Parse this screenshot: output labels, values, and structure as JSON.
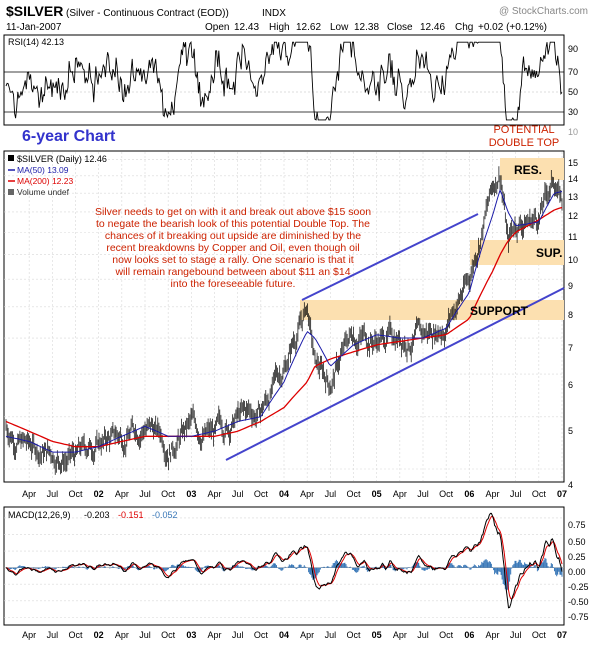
{
  "header": {
    "symbol": "$SILVER",
    "name": "(Silver - Continuous Contract (EOD))",
    "exchange": "INDX",
    "watermark": "@ StockCharts.com",
    "date": "11-Jan-2007",
    "open_label": "Open",
    "open": "12.43",
    "high_label": "High",
    "high": "12.62",
    "low_label": "Low",
    "low": "12.38",
    "close_label": "Close",
    "close": "12.46",
    "chg_label": "Chg",
    "chg": "+0.02 (+0.12%)"
  },
  "rsi_panel": {
    "label": "RSI(14) 42.13",
    "ticks": [
      "90",
      "70",
      "50",
      "30",
      "10"
    ]
  },
  "price_panel": {
    "legend": {
      "price": "$SILVER (Daily) 12.46",
      "ma50": "MA(50) 13.09",
      "ma200": "MA(200) 12.23",
      "volume": "Volume undef"
    },
    "y_ticks": [
      "15",
      "14",
      "13",
      "12",
      "11",
      "10",
      "9",
      "8",
      "7",
      "6",
      "5",
      "4"
    ],
    "annotations": {
      "six_year": "6-year Chart",
      "double_top_1": "POTENTIAL",
      "double_top_2": "DOUBLE TOP",
      "res": "RES.",
      "sup": "SUP.",
      "support": "SUPPORT",
      "commentary": [
        "Silver needs to get on with it and break out above $15 soon",
        "to negate the bearish look of this potential Double Top. The",
        "chances of it breaking out upside are diminished by the",
        "recent breakdowns by Copper and Oil, even though oil",
        "now looks set to stage a rally. One scenario is that it",
        "will remain rangebound between about $11 an $14",
        "into the foreseeable future."
      ]
    }
  },
  "x_axis_labels": [
    "Apr",
    "Jul",
    "Oct",
    "02",
    "Apr",
    "Jul",
    "Oct",
    "03",
    "Apr",
    "Jul",
    "Oct",
    "04",
    "Apr",
    "Jul",
    "Oct",
    "05",
    "Apr",
    "Jul",
    "Oct",
    "06",
    "Apr",
    "Jul",
    "Oct",
    "07"
  ],
  "macd_panel": {
    "label_prefix": "MACD(12,26,9)",
    "value1": "-0.203",
    "value2": "-0.151",
    "value3": "-0.052",
    "ticks": [
      "0.75",
      "0.50",
      "0.25",
      "0.00",
      "-0.25",
      "-0.50",
      "-0.75"
    ]
  },
  "colors": {
    "price_bars": "#000000",
    "ma50": "#1a1aa8",
    "ma200": "#dd0000",
    "trendline": "#4444cc",
    "zone": "#fce0b0",
    "annotation_red": "#cc2200",
    "annotation_blue": "#3333cc",
    "macd_hist": "#3a78b8"
  },
  "chart_data": {
    "type": "line",
    "x": [
      "2001-01",
      "2001-04",
      "2001-07",
      "2001-10",
      "2002-01",
      "2002-04",
      "2002-07",
      "2002-10",
      "2003-01",
      "2003-04",
      "2003-07",
      "2003-10",
      "2004-01",
      "2004-04",
      "2004-05",
      "2004-07",
      "2004-10",
      "2005-01",
      "2005-04",
      "2005-07",
      "2005-10",
      "2006-01",
      "2006-04",
      "2006-05",
      "2006-06",
      "2006-07",
      "2006-10",
      "2006-12",
      "2007-01"
    ],
    "series": [
      {
        "name": "$SILVER",
        "values": [
          4.8,
          4.4,
          4.3,
          4.2,
          4.5,
          4.6,
          4.9,
          4.5,
          4.8,
          4.6,
          5.0,
          5.1,
          6.2,
          8.0,
          6.2,
          5.8,
          7.2,
          7.0,
          7.1,
          7.0,
          7.5,
          9.0,
          13.2,
          14.5,
          10.5,
          11.5,
          11.8,
          13.8,
          12.46
        ]
      },
      {
        "name": "MA(50)",
        "values": [
          4.6,
          4.5,
          4.3,
          4.3,
          4.4,
          4.6,
          4.8,
          4.6,
          4.6,
          4.7,
          4.9,
          5.0,
          5.8,
          7.2,
          7.0,
          6.2,
          6.8,
          7.1,
          7.0,
          7.0,
          7.3,
          8.5,
          11.8,
          13.2,
          12.0,
          11.3,
          11.5,
          13.0,
          13.09
        ]
      },
      {
        "name": "MA(200)",
        "values": [
          4.9,
          4.7,
          4.5,
          4.4,
          4.4,
          4.5,
          4.6,
          4.6,
          4.6,
          4.6,
          4.7,
          4.9,
          5.2,
          5.8,
          6.2,
          6.4,
          6.6,
          6.8,
          6.9,
          7.0,
          7.1,
          7.6,
          9.3,
          10.0,
          10.6,
          11.0,
          11.6,
          12.1,
          12.23
        ]
      }
    ],
    "y_scale": "log",
    "ylim": [
      3.8,
      15.5
    ],
    "rsi": {
      "ylim": [
        10,
        95
      ]
    },
    "macd": {
      "ylim": [
        -0.85,
        0.9
      ]
    }
  }
}
